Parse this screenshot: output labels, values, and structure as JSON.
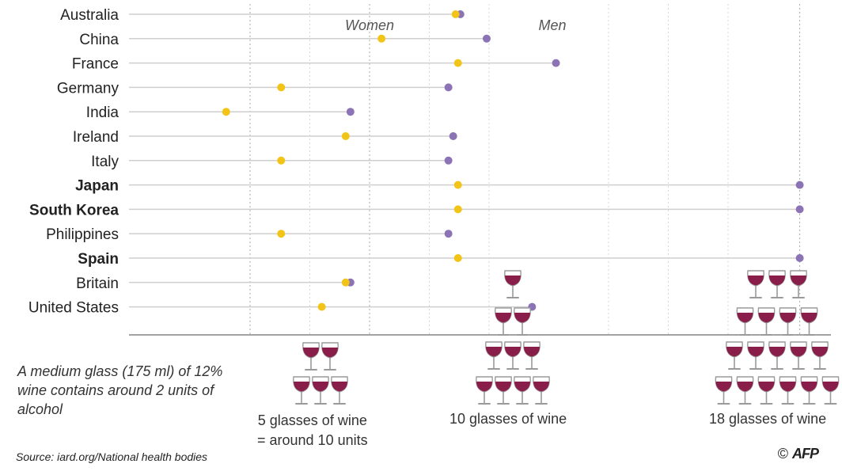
{
  "chart_data": {
    "type": "dot-plot",
    "series": [
      {
        "name": "Women",
        "color": "#f2c418"
      },
      {
        "name": "Men",
        "color": "#8b73b5"
      }
    ],
    "categories": [
      "Australia",
      "China",
      "France",
      "Germany",
      "India",
      "Ireland",
      "Italy",
      "Japan",
      "South Korea",
      "Philippines",
      "Spain",
      "Britain",
      "United States"
    ],
    "bold_categories": [
      "Japan",
      "South Korea",
      "Spain"
    ],
    "women": [
      13.6,
      10.5,
      13.7,
      6.3,
      4.0,
      9.0,
      6.3,
      13.7,
      13.7,
      6.3,
      13.7,
      9.0,
      8.0
    ],
    "men": [
      13.8,
      14.9,
      17.8,
      13.3,
      9.2,
      13.5,
      13.3,
      28.0,
      28.0,
      13.3,
      28.0,
      9.2,
      16.8
    ],
    "reference_lines": [
      5,
      10,
      18
    ],
    "reference_captions": [
      "5 glasses of wine\n= around 10 units",
      "10 glasses of wine",
      "18 glasses of wine"
    ],
    "note": "A medium glass (175 ml) of 12% wine contains around 2 units of alcohol",
    "source": "Source: iard.org/National health bodies",
    "credit": "AFP"
  }
}
